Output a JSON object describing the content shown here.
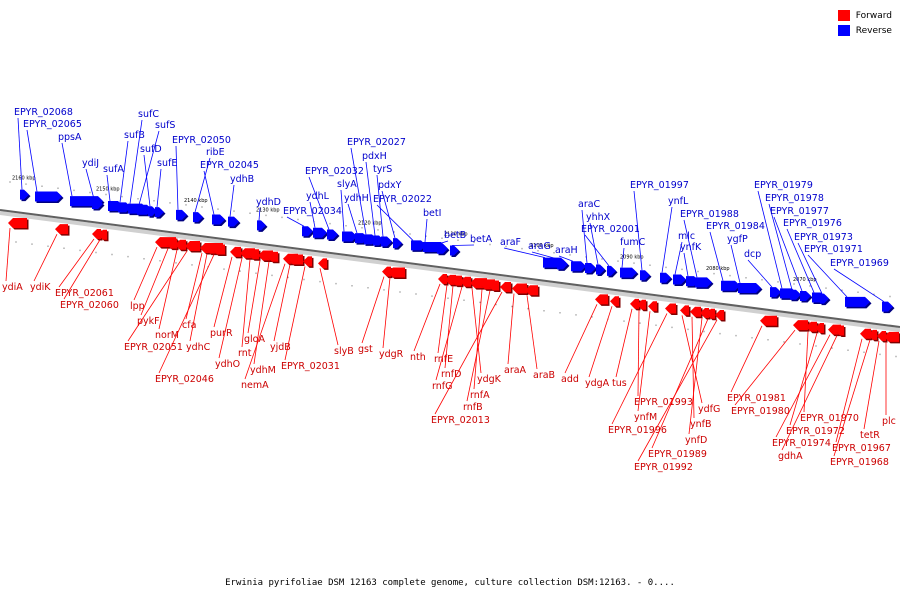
{
  "legend": {
    "forward_label": "Forward",
    "reverse_label": "Reverse",
    "forward_color": "#ff0000",
    "reverse_color": "#0000ff"
  },
  "caption": "Erwinia pyrifoliae DSM 12163 complete genome, culture collection DSM:12163. - 0....",
  "scale_labels": [
    "2160 kbp",
    "2150 kbp",
    "2140 kbp",
    "2130 kbp",
    "2120 kbp",
    "2110 kbp",
    "2100 kbp",
    "2090 kbp",
    "2080 kbp",
    "2070 kbp"
  ],
  "reverse_genes": [
    "EPYR_02068",
    "EPYR_02065",
    "ppsA",
    "ydiJ",
    "sufA",
    "sufB",
    "sufC",
    "sufS",
    "sufD",
    "sufE",
    "EPYR_02050",
    "ribE",
    "EPYR_02045",
    "ydhB",
    "ydhD",
    "EPYR_02034",
    "ydhL",
    "EPYR_02032",
    "slyA",
    "ydhH",
    "EPYR_02027",
    "pdxH",
    "tyrS",
    "pdxY",
    "EPYR_02022",
    "betI",
    "betB",
    "betA",
    "araF",
    "araG",
    "araH",
    "araC",
    "yhhX",
    "EPYR_02001",
    "fumC",
    "EPYR_01997",
    "ynfL",
    "mlc",
    "ynfK",
    "EPYR_01988",
    "EPYR_01984",
    "ygfP",
    "dcp",
    "EPYR_01979",
    "EPYR_01978",
    "EPYR_01977",
    "EPYR_01976",
    "EPYR_01973",
    "EPYR_01971",
    "EPYR_01969"
  ],
  "forward_genes": [
    "ydiA",
    "ydiK",
    "EPYR_02061",
    "EPYR_02060",
    "lpp",
    "pykF",
    "norM",
    "EPYR_02051",
    "cfa",
    "ydhC",
    "EPYR_02046",
    "purR",
    "ydhO",
    "rnt",
    "gloA",
    "ydhM",
    "nemA",
    "yjdB",
    "EPYR_02031",
    "slyB",
    "gst",
    "ydgR",
    "nth",
    "rnfE",
    "rnfD",
    "rnfG",
    "ydgK",
    "rnfA",
    "rnfB",
    "EPYR_02013",
    "araA",
    "araB",
    "add",
    "ydgA",
    "tus",
    "EPYR_01993",
    "ynfM",
    "EPYR_01996",
    "ydfG",
    "ynfB",
    "ynfD",
    "EPYR_01989",
    "EPYR_01992",
    "EPYR_01981",
    "EPYR_01980",
    "EPYR_01970",
    "EPYR_01972",
    "EPYR_01974",
    "gdhA",
    "EPYR_01967",
    "EPYR_01968",
    "tetR",
    "plc"
  ]
}
